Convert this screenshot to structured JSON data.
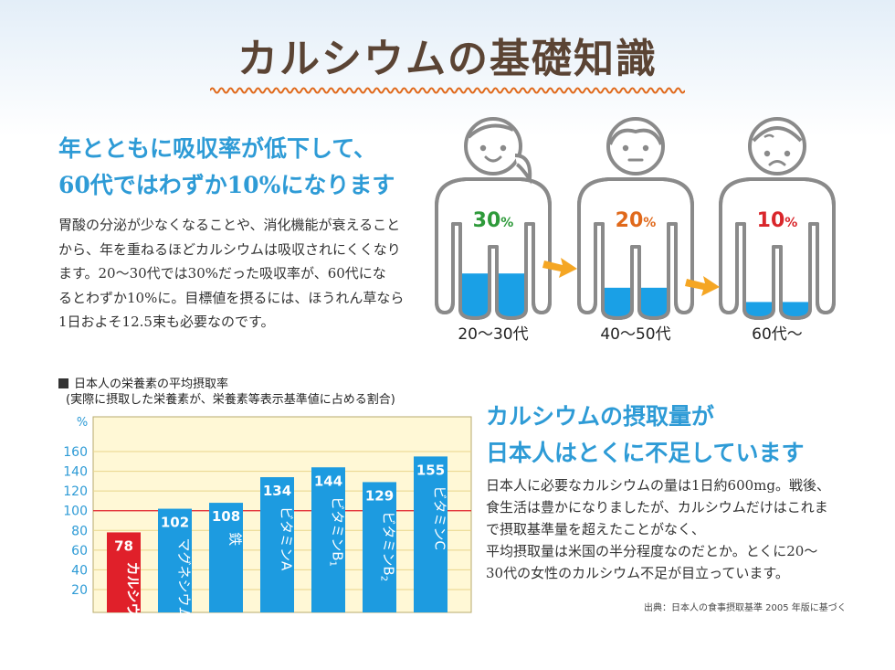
{
  "title": "カルシウムの基礎知識",
  "section1": {
    "heading_lines": [
      "年とともに吸収率が低下して、",
      "60代ではわずか10%になります"
    ],
    "body_lines": [
      "胃酸の分泌が少なくなることや、消化機能が衰えること",
      "から、年を重ねるほどカルシウムは吸収されにくくなり",
      "ます。20〜30代では30%だった吸収率が、60代にな",
      "るとわずか10%に。目標値を摂るには、ほうれん草なら",
      "1日およそ12.5束も必要なのです。"
    ]
  },
  "figures": [
    {
      "age": "20〜30代",
      "rate_value": "30",
      "rate_unit": "%",
      "level": 0.3,
      "color": "#2e9a3a"
    },
    {
      "age": "40〜50代",
      "rate_value": "20",
      "rate_unit": "%",
      "level": 0.2,
      "color": "#e0691b"
    },
    {
      "age": "60代〜",
      "rate_value": "10",
      "rate_unit": "%",
      "level": 0.1,
      "color": "#d9262b"
    }
  ],
  "colors": {
    "title_brown": "#5b4434",
    "heading_blue": "#2e9bd6",
    "bar_blue": "#1d9be0",
    "bar_red": "#e0202a",
    "arrow": "#f5a623",
    "fill_blue": "#1aa0e6",
    "reference_line": "#e0202a"
  },
  "chart_data": {
    "type": "bar",
    "title": "日本人の栄養素の平均摂取率",
    "subtitle": "(実際に摂取した栄養素が、栄養素等表示基準値に占める割合)",
    "ylabel": "%",
    "ylim": [
      0,
      170
    ],
    "yticks": [
      20,
      40,
      60,
      80,
      100,
      120,
      140,
      160
    ],
    "reference_line": 100,
    "grid": true,
    "categories": [
      "カルシウム",
      "マグネシウム",
      "鉄",
      "ビタミンA",
      "ビタミンB1",
      "ビタミンB2",
      "ビタミンC"
    ],
    "category_labels": [
      {
        "main": "カルシウム",
        "sub": ""
      },
      {
        "main": "マグネシウム",
        "sub": ""
      },
      {
        "main": "鉄",
        "sub": ""
      },
      {
        "main": "ビタミンA",
        "sub": ""
      },
      {
        "main": "ビタミンB",
        "sub": "1"
      },
      {
        "main": "ビタミンB",
        "sub": "2"
      },
      {
        "main": "ビタミンC",
        "sub": ""
      }
    ],
    "values": [
      78,
      102,
      108,
      134,
      144,
      129,
      155
    ],
    "highlight_index": 0
  },
  "section2": {
    "heading_lines": [
      "カルシウムの摂取量が",
      "日本人はとくに不足しています"
    ],
    "body_lines": [
      "日本人に必要なカルシウムの量は1日約600mg。戦後、",
      "食生活は豊かになりましたが、カルシウムだけはこれま",
      "で摂取基準量を超えたことがなく、",
      "平均摂取量は米国の半分程度なのだとか。とくに20〜",
      "30代の女性のカルシウム不足が目立っています。"
    ],
    "source": "出典：日本人の食事摂取基準 2005 年版に基づく"
  }
}
